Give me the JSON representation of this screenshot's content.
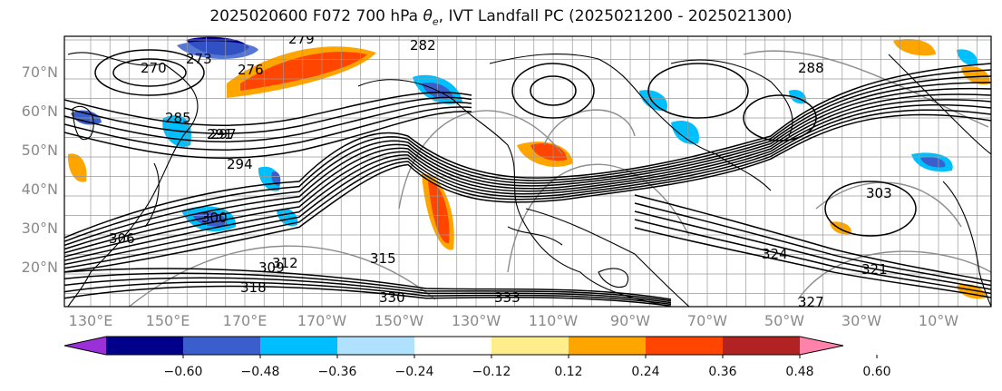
{
  "title": {
    "prefix": "2025020600 F072 700 hPa ",
    "theta": "θ",
    "theta_sub": "e",
    "suffix": ", IVT Landfall PC (2025021200 - 2025021300)"
  },
  "lat_labels": [
    "70°N",
    "60°N",
    "50°N",
    "40°N",
    "30°N",
    "20°N"
  ],
  "lon_labels": [
    "130°E",
    "150°E",
    "170°E",
    "170°W",
    "150°W",
    "130°W",
    "110°W",
    "90°W",
    "70°W",
    "50°W",
    "30°W",
    "10°W"
  ],
  "contour_labels": [
    "270",
    "273",
    "279",
    "282",
    "276",
    "285",
    "288",
    "291",
    "294",
    "297",
    "300",
    "303",
    "306",
    "309",
    "312",
    "315",
    "318",
    "321",
    "324",
    "327",
    "330",
    "333"
  ],
  "colorbar": {
    "ticks": [
      "−0.60",
      "−0.48",
      "−0.36",
      "−0.24",
      "−0.12",
      "0.12",
      "0.24",
      "0.36",
      "0.48",
      "0.60"
    ],
    "colors": [
      "#9b30d9",
      "#00008b",
      "#3a5fcd",
      "#00bfff",
      "#b0e2ff",
      "#ffffff",
      "#ffec8b",
      "#ffa500",
      "#ff4500",
      "#b22222",
      "#ff82ab"
    ]
  }
}
